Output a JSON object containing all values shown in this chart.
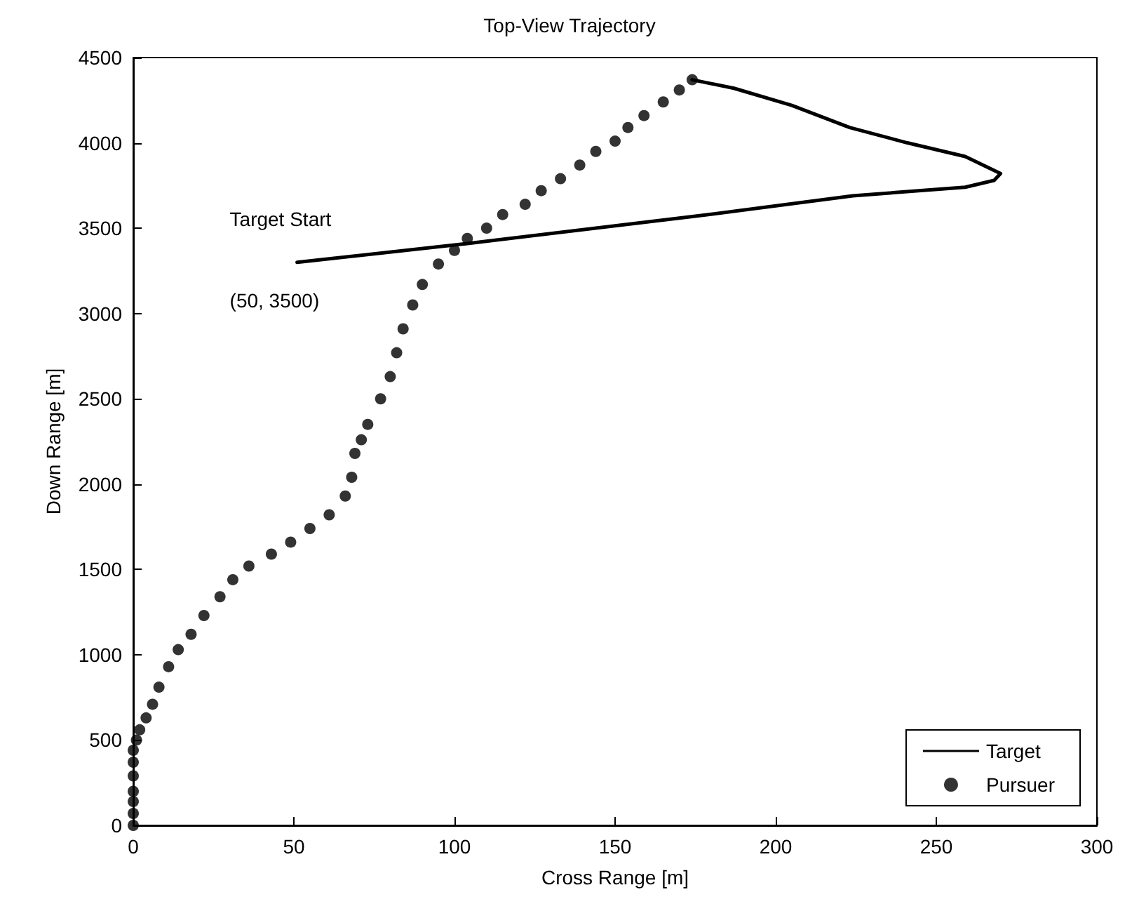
{
  "chart_data": {
    "type": "line",
    "title": "Top-View Trajectory",
    "xlabel": "Cross Range [m]",
    "ylabel": "Down Range [m]",
    "annotations": [
      "Target Start",
      "(50, 3500)"
    ],
    "xlim": [
      0,
      300
    ],
    "xticks": [
      0,
      50,
      100,
      150,
      200,
      250,
      300
    ],
    "ylim": [
      0,
      4500
    ],
    "yticks": [
      0,
      500,
      1000,
      1500,
      2000,
      2500,
      3000,
      3500,
      4000,
      4500
    ],
    "grid": false,
    "legend": "bottom right",
    "series": [
      {
        "name": "Target",
        "color": "#000000",
        "marker": "none",
        "line_style": "solid",
        "x": [
          51,
          104,
          175,
          224,
          259,
          268,
          270,
          259,
          241,
          223,
          205,
          187,
          174
        ],
        "values": [
          3300,
          3410,
          3570,
          3690,
          3740,
          3780,
          3820,
          3920,
          4000,
          4090,
          4220,
          4320,
          4370
        ]
      },
      {
        "name": "Pursuer",
        "type": "scatter",
        "color": "#000000",
        "marker": "circle",
        "x": [
          0,
          0,
          0,
          0,
          0,
          0,
          0,
          1,
          2,
          4,
          6,
          8,
          11,
          14,
          18,
          22,
          27,
          31,
          36,
          43,
          49,
          55,
          61,
          66,
          68,
          69,
          71,
          73,
          77,
          80,
          82,
          84,
          87,
          90,
          95,
          100,
          104,
          110,
          115,
          122,
          127,
          133,
          139,
          144,
          150,
          154,
          159,
          165,
          170,
          174
        ],
        "values": [
          0,
          70,
          140,
          200,
          290,
          370,
          440,
          500,
          560,
          630,
          710,
          810,
          930,
          1030,
          1120,
          1230,
          1340,
          1440,
          1520,
          1590,
          1660,
          1740,
          1820,
          1930,
          2040,
          2180,
          2260,
          2350,
          2500,
          2630,
          2770,
          2910,
          3050,
          3170,
          3290,
          3370,
          3440,
          3500,
          3580,
          3640,
          3720,
          3790,
          3870,
          3950,
          4010,
          4090,
          4160,
          4240,
          4310,
          4370
        ]
      }
    ]
  }
}
